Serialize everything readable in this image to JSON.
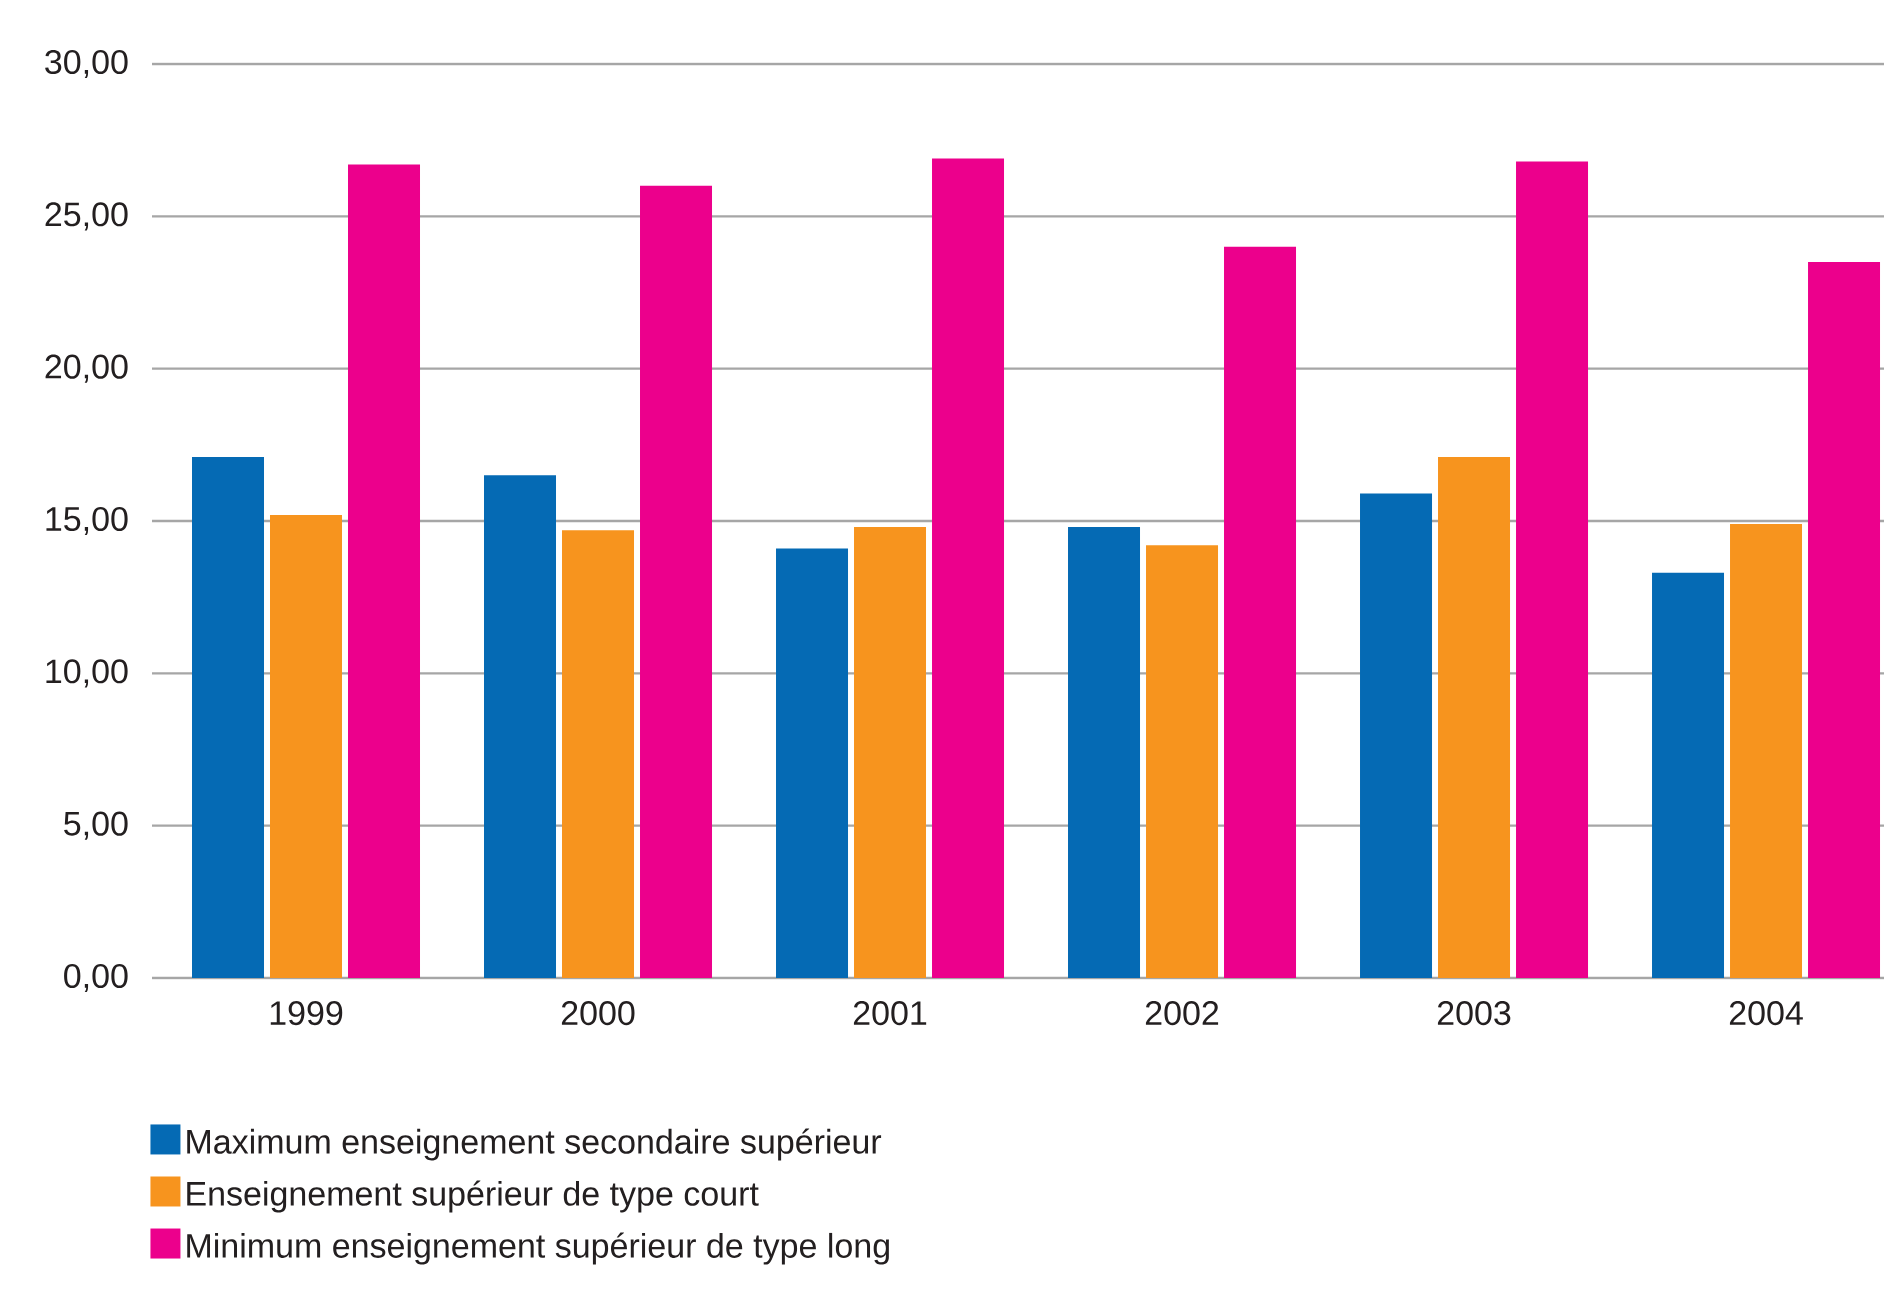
{
  "chart_data": {
    "type": "bar",
    "categories": [
      "1999",
      "2000",
      "2001",
      "2002",
      "2003",
      "2004"
    ],
    "series": [
      {
        "name": "Maximum enseignement secondaire supérieur",
        "color": "#056ab4",
        "values": [
          17.1,
          16.5,
          14.1,
          14.8,
          15.9,
          13.3
        ]
      },
      {
        "name": "Enseignement supérieur de type court",
        "color": "#f7941e",
        "values": [
          15.2,
          14.7,
          14.8,
          14.2,
          17.1,
          14.9
        ]
      },
      {
        "name": "Minimum enseignement supérieur de type long",
        "color": "#ec008c",
        "values": [
          26.7,
          26.0,
          26.9,
          24.0,
          26.8,
          23.5
        ]
      }
    ],
    "ylim": [
      0,
      30
    ],
    "yticks": [
      {
        "value": 0,
        "label": "0,00"
      },
      {
        "value": 5,
        "label": "5,00"
      },
      {
        "value": 10,
        "label": "10,00"
      },
      {
        "value": 15,
        "label": "15,00"
      },
      {
        "value": 20,
        "label": "20,00"
      },
      {
        "value": 25,
        "label": "25,00"
      },
      {
        "value": 30,
        "label": "30,00"
      }
    ],
    "grid": "y",
    "legend": "bottom left"
  }
}
